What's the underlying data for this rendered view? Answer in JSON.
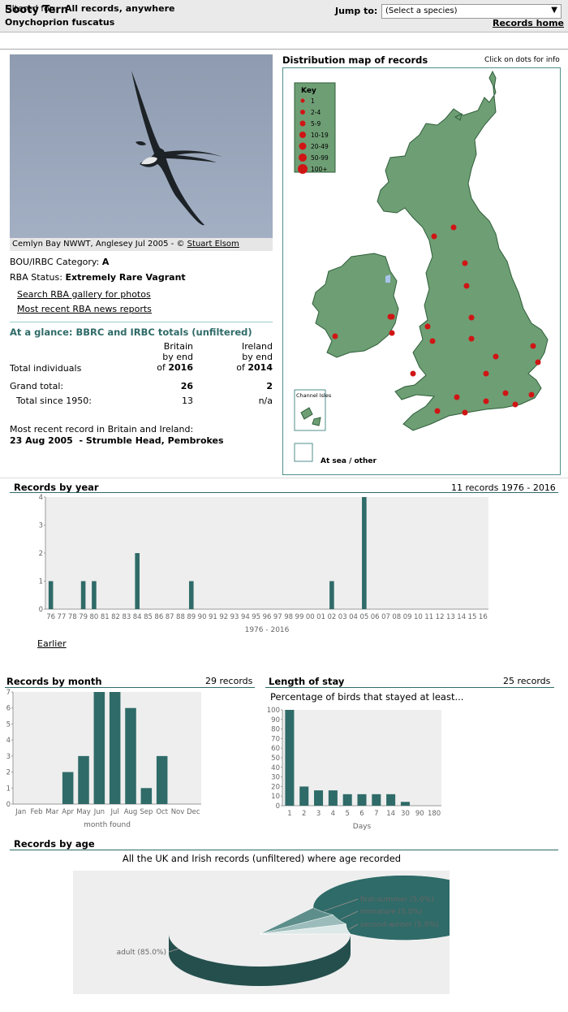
{
  "header": {
    "species_name": "Sooty Tern",
    "scientific_name": "Onychoprion fuscatus",
    "jump_label": "Jump to:",
    "select_value": "(Select a species)",
    "records_home": "Records home"
  },
  "filter": {
    "label": "Filtered for:",
    "value": "All records, anywhere"
  },
  "photo": {
    "caption_prefix": "Cemlyn Bay NWWT, Anglesey Jul 2005 - ©",
    "caption_author": "Stuart Elsom"
  },
  "info": {
    "category_label": "BOU/IRBC Category:",
    "category_value": "A",
    "status_label": "RBA Status:",
    "status_value": "Extremely Rare Vagrant",
    "link_gallery": "Search RBA gallery for photos",
    "link_news": "Most recent RBA news reports"
  },
  "glance": {
    "title": "At a glance: BBRC and IRBC totals (unfiltered)",
    "britain_head": [
      "Britain",
      "by end",
      "of"
    ],
    "britain_year": "2016",
    "ireland_head": [
      "Ireland",
      "by end",
      "of"
    ],
    "ireland_year": "2014",
    "total_individuals": "Total individuals",
    "grand_total_label": "Grand total:",
    "grand_total_britain": "26",
    "grand_total_ireland": "2",
    "since_label": "Total since 1950:",
    "since_britain": "13",
    "since_ireland": "n/a",
    "recent_label": "Most recent record in Britain and Ireland:",
    "recent_value": "23 Aug 2005  - Strumble Head, Pembrokes"
  },
  "map": {
    "title": "Distribution map of records",
    "hint": "Click on dots for info",
    "key_title": "Key",
    "key_items": [
      "1",
      "2-4",
      "5-9",
      "10-19",
      "20-49",
      "50-99",
      "100+"
    ],
    "channel_isles": "Channel Isles",
    "at_sea": "At sea / other",
    "colors": {
      "land": "#6e9e74",
      "dot": "#d01515",
      "sea": "#ffffff",
      "key_bg": "#6e9e74"
    }
  },
  "year_chart": {
    "title": "Records by year",
    "summary": "11 records 1976 - 2016",
    "earlier_link": "Earlier"
  },
  "month_chart": {
    "title": "Records by month",
    "summary": "29 records"
  },
  "stay_chart": {
    "title": "Length of stay",
    "summary": "25 records"
  },
  "age_chart": {
    "title": "Records by age"
  },
  "chart_data": [
    {
      "type": "bar",
      "categories": [
        "76",
        "77",
        "78",
        "79",
        "80",
        "81",
        "82",
        "83",
        "84",
        "85",
        "86",
        "87",
        "88",
        "89",
        "90",
        "91",
        "92",
        "93",
        "94",
        "95",
        "96",
        "97",
        "98",
        "99",
        "00",
        "01",
        "02",
        "03",
        "04",
        "05",
        "06",
        "07",
        "08",
        "09",
        "10",
        "11",
        "12",
        "13",
        "14",
        "15",
        "16"
      ],
      "values": [
        1,
        0,
        0,
        1,
        1,
        0,
        0,
        0,
        2,
        0,
        0,
        0,
        0,
        1,
        0,
        0,
        0,
        0,
        0,
        0,
        0,
        0,
        0,
        0,
        0,
        0,
        1,
        0,
        0,
        4,
        0,
        0,
        0,
        0,
        0,
        0,
        0,
        0,
        0,
        0,
        0
      ],
      "xlabel": "1976 - 2016",
      "ylim": [
        0,
        4
      ],
      "yticks": [
        0,
        1,
        2,
        3,
        4
      ],
      "color": "#2f6b68"
    },
    {
      "type": "bar",
      "categories": [
        "Jan",
        "Feb",
        "Mar",
        "Apr",
        "May",
        "Jun",
        "Jul",
        "Aug",
        "Sep",
        "Oct",
        "Nov",
        "Dec"
      ],
      "values": [
        0,
        0,
        0,
        2,
        3,
        7,
        7,
        6,
        1,
        3,
        0,
        0
      ],
      "xlabel": "month found",
      "ylim": [
        0,
        7
      ],
      "yticks": [
        0,
        1,
        2,
        3,
        4,
        5,
        6,
        7
      ],
      "color": "#2f6b68"
    },
    {
      "type": "bar",
      "title": "Percentage of birds that stayed at least...",
      "categories": [
        "1",
        "2",
        "3",
        "4",
        "5",
        "6",
        "7",
        "14",
        "30",
        "90",
        "180"
      ],
      "values": [
        100,
        20,
        16,
        16,
        12,
        12,
        12,
        12,
        4,
        0,
        0
      ],
      "xlabel": "Days",
      "ylim": [
        0,
        100
      ],
      "yticks": [
        0,
        10,
        20,
        30,
        40,
        50,
        60,
        70,
        80,
        90,
        100
      ],
      "color": "#2f6b68"
    },
    {
      "type": "pie",
      "title": "All the UK and Irish records (unfiltered) where age recorded",
      "categories": [
        "adult (85.0%)",
        "first-summer (5.0%)",
        "immature (5.0%)",
        "second-winter (5.0%)"
      ],
      "values": [
        85,
        5,
        5,
        5
      ],
      "colors": [
        "#2f6b68",
        "#5d8e8b",
        "#9bbcba",
        "#dde9e8"
      ]
    }
  ]
}
